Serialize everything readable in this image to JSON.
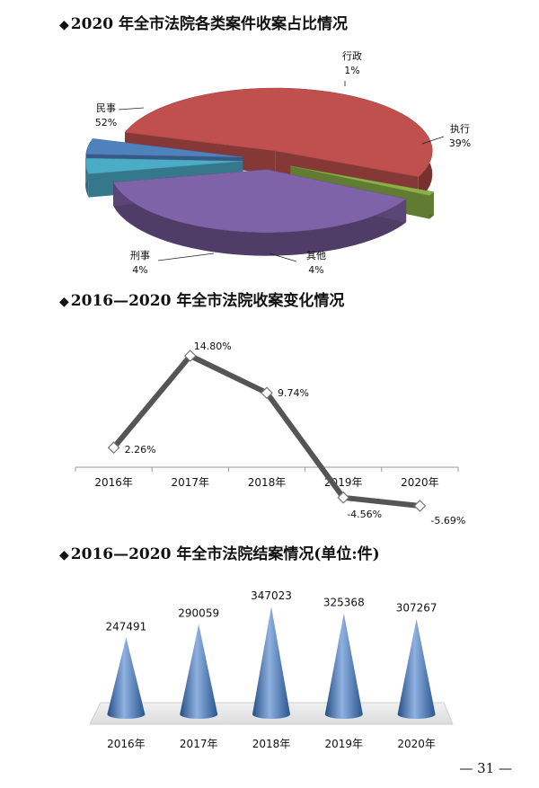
{
  "page_number": "— 31 —",
  "chart_data": [
    {
      "type": "pie",
      "title": "2020 年全市法院各类案件收案占比情况",
      "slices": [
        {
          "name": "民事",
          "value": 52,
          "label": "52%",
          "color": "#c0504d"
        },
        {
          "name": "行政",
          "value": 1,
          "label": "1%",
          "color": "#8bb048"
        },
        {
          "name": "执行",
          "value": 39,
          "label": "39%",
          "color": "#7f63a8"
        },
        {
          "name": "其他",
          "value": 4,
          "label": "4%",
          "color": "#4bacc6"
        },
        {
          "name": "刑事",
          "value": 4,
          "label": "4%",
          "color": "#4f81bd"
        }
      ]
    },
    {
      "type": "line",
      "title": "2016—2020 年全市法院收案变化情况",
      "categories": [
        "2016年",
        "2017年",
        "2018年",
        "2019年",
        "2020年"
      ],
      "values": [
        2.26,
        14.8,
        9.74,
        -4.56,
        -5.69
      ],
      "data_labels": [
        "2.26%",
        "14.80%",
        "9.74%",
        "-4.56%",
        "-5.69%"
      ],
      "line_color": "#555555",
      "ylim": [
        -7,
        16
      ]
    },
    {
      "type": "bar",
      "title": "2016—2020 年全市法院结案情况(单位:件)",
      "categories": [
        "2016年",
        "2017年",
        "2018年",
        "2019年",
        "2020年"
      ],
      "values": [
        247491,
        290059,
        347023,
        325368,
        307267
      ],
      "data_labels": [
        "247491",
        "290059",
        "347023",
        "325368",
        "307267"
      ],
      "bar_color": "#4f81bd",
      "ylim": [
        0,
        360000
      ]
    }
  ]
}
